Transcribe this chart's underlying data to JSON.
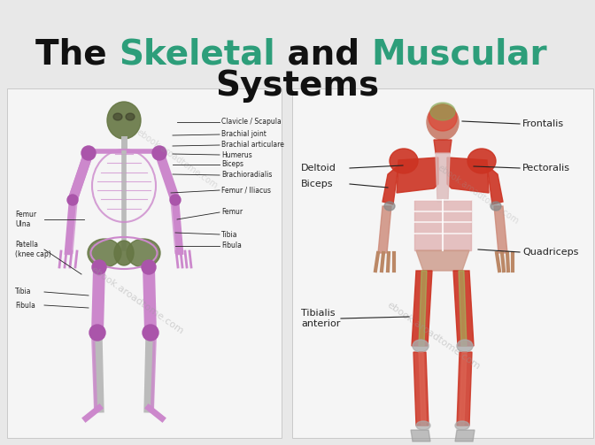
{
  "title_text1": "The ",
  "title_skeletal": "Skeletal",
  "title_text2": " and ",
  "title_muscular": "Muscular",
  "title_line2": "Systems",
  "title_color_normal": "#111111",
  "title_color_colored": "#2d9e7a",
  "title_fontsize": 28,
  "title_line2_fontsize": 28,
  "bg_color": "#e8e8e8",
  "panel_bg": "#f0f0f0",
  "skeleton_primary": "#cc88cc",
  "skeleton_secondary": "#aa55aa",
  "skeleton_bone": "#bbbbbb",
  "skeleton_green": "#667744",
  "muscle_red": "#cc3322",
  "muscle_flesh": "#cc9977",
  "muscle_green": "#667744",
  "watermark_color": "#999999",
  "watermark_alpha": 0.4,
  "label_fontsize": 6.5,
  "label_color": "#222222"
}
